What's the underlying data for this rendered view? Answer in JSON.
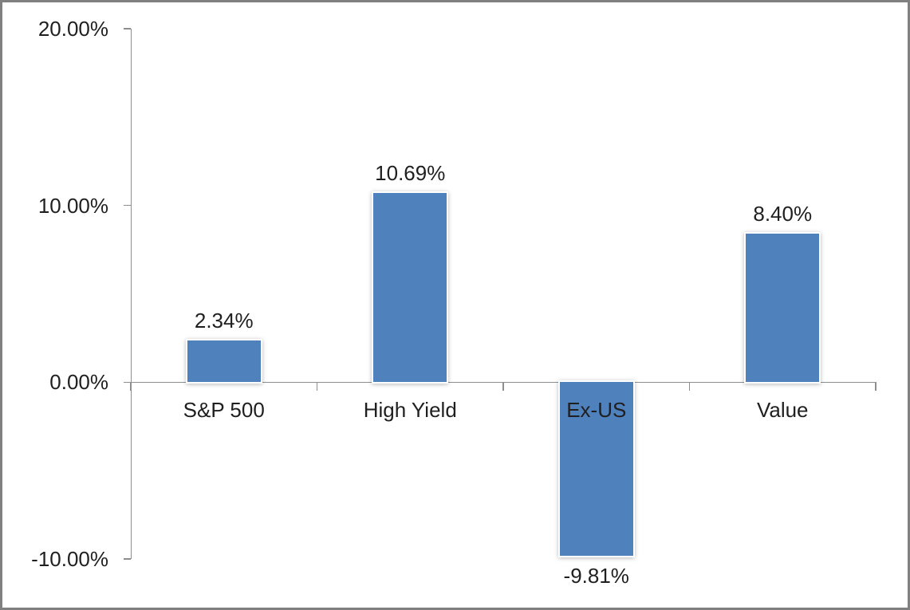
{
  "window": {
    "background_color": "#ffffff",
    "frame_border_color": "#808080"
  },
  "chart_data": {
    "type": "bar",
    "title": "",
    "xlabel": "",
    "ylabel": "",
    "categories": [
      "S&P 500",
      "High Yield",
      "Ex-US",
      "Value"
    ],
    "values": [
      2.34,
      10.69,
      -9.81,
      8.4
    ],
    "data_labels": [
      "2.34%",
      "10.69%",
      "-9.81%",
      "8.40%"
    ],
    "yticks": [
      {
        "value": 20,
        "label": "20.00%"
      },
      {
        "value": 10,
        "label": "10.00%"
      },
      {
        "value": 0,
        "label": "0.00%"
      },
      {
        "value": -10,
        "label": "-10.00%"
      }
    ],
    "ylim": [
      -10,
      20
    ],
    "grid": false,
    "legend": false,
    "bar_color": "#4F81BD",
    "bar_edge_color": "#FFFFFF",
    "axis_color": "#8E8E8E",
    "text_color": "#1f1f1f"
  }
}
